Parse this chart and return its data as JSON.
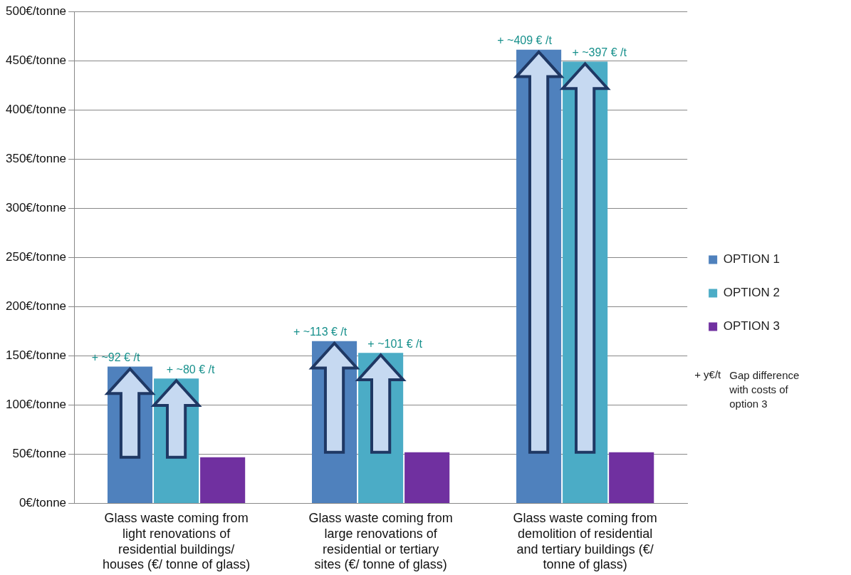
{
  "chart_data": {
    "type": "bar",
    "categories": [
      "Glass waste coming from light renovations of residential buildings/ houses (€/ tonne of glass)",
      "Glass waste coming from large renovations of residential or tertiary sites (€/ tonne of glass)",
      "Glass waste coming from demolition of residential and tertiary buildings (€/ tonne of glass)"
    ],
    "series": [
      {
        "name": "OPTION 1",
        "color": "#4f81bd",
        "values": [
          139,
          165,
          461
        ]
      },
      {
        "name": "OPTION 2",
        "color": "#4bacc6",
        "values": [
          127,
          153,
          449
        ]
      },
      {
        "name": "OPTION 3",
        "color": "#7030a0",
        "values": [
          47,
          52,
          52
        ]
      }
    ],
    "ylim": [
      0,
      500
    ],
    "yticks": [
      {
        "value": 0,
        "label": "0€/tonne"
      },
      {
        "value": 50,
        "label": "50€/tonne"
      },
      {
        "value": 100,
        "label": "100€/tonne"
      },
      {
        "value": 150,
        "label": "150€/tonne"
      },
      {
        "value": 200,
        "label": "200€/tonne"
      },
      {
        "value": 250,
        "label": "250€/tonne"
      },
      {
        "value": 300,
        "label": "300€/tonne"
      },
      {
        "value": 350,
        "label": "350€/tonne"
      },
      {
        "value": 400,
        "label": "400€/tonne"
      },
      {
        "value": 450,
        "label": "450€/tonne"
      },
      {
        "value": 500,
        "label": "500€/tonne"
      }
    ],
    "grid": "y",
    "legend": "right",
    "annotations": [
      "+ ~92 € /t",
      "+ ~80 € /t",
      "+ ~113 € /t",
      "+ ~101 € /t",
      "+ ~409 € /t",
      "+ ~397 € /t",
      "+ y€/t",
      "Gap difference with costs of option 3"
    ]
  }
}
